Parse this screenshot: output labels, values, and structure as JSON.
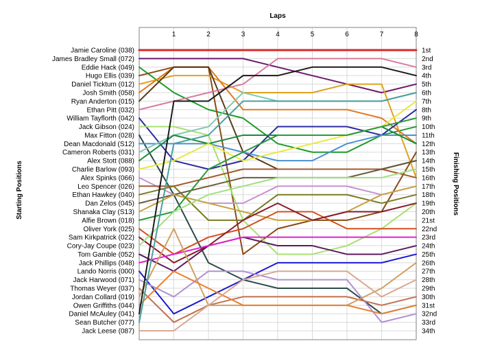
{
  "chart_data": {
    "type": "line",
    "title": "",
    "xlabel": "Laps",
    "ylabel_left": "Starting Positions",
    "ylabel_right": "Finishing Positions",
    "x": [
      0,
      1,
      2,
      3,
      4,
      5,
      6,
      7,
      8
    ],
    "x_tick_labels": [
      "1",
      "2",
      "3",
      "4",
      "5",
      "6",
      "7",
      "8"
    ],
    "ylim": [
      1,
      34
    ],
    "grid": true,
    "start_labels": [
      "Jamie Caroline (038)",
      "James Bradley Small (072)",
      "Eddie Hack (049)",
      "Hugo Ellis (039)",
      "Daniel Ticktum (012)",
      "Josh Smith (058)",
      "Ryan Anderton (015)",
      "Ethan Pitt (032)",
      "William Tayflorth (042)",
      "Jack Gibson (024)",
      "Max Fitton (028)",
      "Dean Macdonald (S12)",
      "Cameron Roberts (031)",
      "Alex Stott (088)",
      "Charlie Barlow (093)",
      "Alex Spinks (066)",
      "Leo Spencer (026)",
      "Ethan Hawkey (040)",
      "Dan Zelos (045)",
      "Shanaka Clay (S13)",
      "Alfie Brown (018)",
      "Oliver York (025)",
      "Sam Kirkpatrick (022)",
      "Cory-Jay Coupe (023)",
      "Tom Gamble (052)",
      "Jack Phillips (048)",
      "Lando Norris (000)",
      "Jack Harwood (071)",
      "Thomas Weyer (037)",
      "Jordan Collard (019)",
      "Owen Griffiths (044)",
      "Daniel McAuley (041)",
      "Sean Butcher (077)",
      "Jack Leese (087)"
    ],
    "finish_labels": [
      "1st",
      "2nd",
      "3rd",
      "4th",
      "5th",
      "6th",
      "7th",
      "8th",
      "9th",
      "10th",
      "11th",
      "12th",
      "13th",
      "14th",
      "15th",
      "16th",
      "17th",
      "18th",
      "19th",
      "20th",
      "21st",
      "22nd",
      "23rd",
      "24th",
      "25th",
      "26th",
      "27th",
      "28th",
      "29th",
      "30th",
      "31st",
      "32nd",
      "33rd",
      "34th"
    ],
    "series": [
      {
        "color": "#d42a2a",
        "width": 3,
        "values": [
          1,
          1,
          1,
          1,
          1,
          1,
          1,
          1,
          1
        ]
      },
      {
        "color": "#6a1a6a",
        "width": 2,
        "values": [
          2,
          2,
          2,
          2,
          3,
          4,
          5,
          6,
          5
        ]
      },
      {
        "color": "#1f9b2a",
        "width": 2,
        "values": [
          3,
          6,
          8,
          9,
          12,
          13,
          13,
          11,
          10
        ]
      },
      {
        "color": "#8a4a14",
        "width": 2,
        "values": [
          4,
          3,
          3,
          25,
          22,
          21,
          21,
          20,
          13
        ]
      },
      {
        "color": "#e0a020",
        "width": 2,
        "values": [
          5,
          4,
          4,
          6,
          6,
          6,
          5,
          5,
          16
        ]
      },
      {
        "color": "#e07a1f",
        "width": 2,
        "values": [
          6,
          3,
          3,
          8,
          8,
          8,
          8,
          9,
          12
        ]
      },
      {
        "color": "#5a3a1a",
        "width": 2,
        "values": [
          7,
          3,
          3,
          13,
          15,
          15,
          15,
          15,
          14
        ]
      },
      {
        "color": "#d87aa0",
        "width": 2,
        "values": [
          8,
          7,
          6,
          5,
          2,
          2,
          2,
          2,
          3
        ]
      },
      {
        "color": "#2a2aa0",
        "width": 2,
        "values": [
          9,
          14,
          15,
          14,
          10,
          10,
          10,
          11,
          8
        ]
      },
      {
        "color": "#a8e070",
        "width": 2,
        "values": [
          10,
          10,
          11,
          21,
          25,
          25,
          24,
          22,
          19
        ]
      },
      {
        "color": "#2a4a4a",
        "width": 2,
        "values": [
          11,
          18,
          26,
          28,
          29,
          29,
          29,
          32,
          31
        ]
      },
      {
        "color": "#4a90d0",
        "width": 2,
        "values": [
          12,
          12,
          12,
          13,
          14,
          14,
          12,
          11,
          11
        ]
      },
      {
        "color": "#80c8b0",
        "width": 2,
        "values": [
          13,
          11,
          10,
          6,
          7,
          7,
          7,
          7,
          6
        ]
      },
      {
        "color": "#1a8a3a",
        "width": 2,
        "values": [
          14,
          11,
          12,
          11,
          11,
          11,
          11,
          10,
          12
        ]
      },
      {
        "color": "#e8e840",
        "width": 2,
        "values": [
          15,
          14,
          12,
          14,
          13,
          12,
          11,
          10,
          7
        ]
      },
      {
        "color": "#c890d0",
        "width": 2,
        "values": [
          16,
          18,
          19,
          19,
          17,
          17,
          17,
          18,
          17
        ]
      },
      {
        "color": "#a05a30",
        "width": 2,
        "values": [
          17,
          17,
          16,
          15,
          15,
          15,
          15,
          15,
          16
        ]
      },
      {
        "color": "#7a7a20",
        "width": 2,
        "values": [
          18,
          17,
          21,
          21,
          18,
          18,
          18,
          19,
          18
        ]
      },
      {
        "color": "#6a5a3a",
        "width": 2,
        "values": [
          19,
          18,
          17,
          16,
          16,
          16,
          16,
          15,
          14
        ]
      },
      {
        "color": "#c8a040",
        "width": 2,
        "values": [
          20,
          18,
          19,
          20,
          21,
          21,
          20,
          18,
          17
        ]
      },
      {
        "color": "#2a9a3a",
        "width": 2,
        "values": [
          21,
          20,
          15,
          13,
          11,
          11,
          11,
          10,
          9
        ]
      },
      {
        "color": "#d05020",
        "width": 2,
        "values": [
          22,
          25,
          23,
          22,
          20,
          20,
          22,
          22,
          22
        ]
      },
      {
        "color": "#8a1a2a",
        "width": 2,
        "values": [
          23,
          26,
          24,
          21,
          19,
          21,
          20,
          20,
          19
        ]
      },
      {
        "color": "#a0e080",
        "width": 2,
        "values": [
          24,
          20,
          18,
          17,
          16,
          16,
          16,
          16,
          15
        ]
      },
      {
        "color": "#5a1a5a",
        "width": 2,
        "values": [
          25,
          27,
          24,
          23,
          24,
          24,
          25,
          25,
          24
        ]
      },
      {
        "color": "#e020d0",
        "width": 2,
        "values": [
          26,
          25,
          24,
          23,
          23,
          23,
          23,
          23,
          23
        ]
      },
      {
        "color": "#1a1ad0",
        "width": 2,
        "values": [
          27,
          32,
          30,
          28,
          26,
          26,
          26,
          26,
          25
        ]
      },
      {
        "color": "#b090d0",
        "width": 2,
        "values": [
          28,
          30,
          27,
          27,
          28,
          28,
          28,
          33,
          32
        ]
      },
      {
        "color": "#c07050",
        "width": 2,
        "values": [
          29,
          33,
          31,
          30,
          30,
          30,
          30,
          31,
          30
        ]
      },
      {
        "color": "#d0a060",
        "width": 2,
        "values": [
          30,
          22,
          31,
          31,
          31,
          31,
          31,
          29,
          26
        ]
      },
      {
        "color": "#e88030",
        "width": 2,
        "values": [
          31,
          27,
          29,
          31,
          31,
          31,
          31,
          32,
          31
        ]
      },
      {
        "color": "#1a1a1a",
        "width": 2,
        "values": [
          32,
          7,
          7,
          4,
          4,
          3,
          3,
          3,
          4
        ]
      },
      {
        "color": "#4aa0a0",
        "width": 2,
        "values": [
          33,
          12,
          11,
          7,
          7,
          7,
          7,
          7,
          6
        ]
      },
      {
        "color": "#d8a890",
        "width": 2,
        "values": [
          34,
          34,
          31,
          28,
          27,
          27,
          27,
          30,
          28
        ]
      }
    ]
  }
}
